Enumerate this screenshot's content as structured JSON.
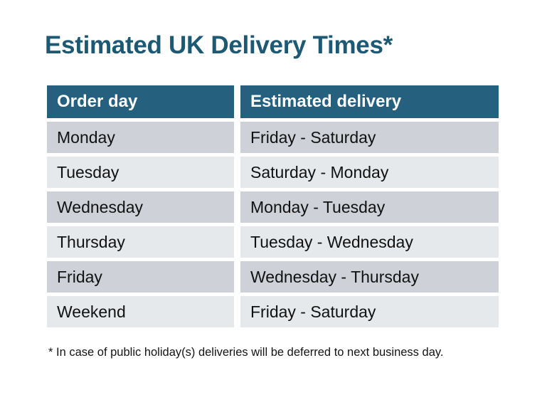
{
  "title": "Estimated UK Delivery Times*",
  "table": {
    "columns": [
      "Order day",
      "Estimated delivery"
    ],
    "rows": [
      [
        "Monday",
        "Friday - Saturday"
      ],
      [
        "Tuesday",
        "Saturday - Monday"
      ],
      [
        "Wednesday",
        "Monday - Tuesday"
      ],
      [
        "Thursday",
        "Tuesday - Wednesday"
      ],
      [
        "Friday",
        "Wednesday - Thursday"
      ],
      [
        "Weekend",
        "Friday - Saturday"
      ]
    ]
  },
  "footnote": "* In case of public holiday(s) deliveries will be deferred to next business day.",
  "colors": {
    "title_text": "#1e5973",
    "header_bg": "#25607f",
    "header_text": "#ffffff",
    "row_dark": "#ced2d8",
    "row_light": "#e6e9ec",
    "cell_text": "#111111"
  }
}
